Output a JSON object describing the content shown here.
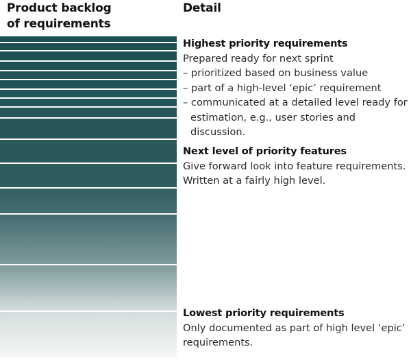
{
  "headings": {
    "backlog_line1": "Product backlog",
    "backlog_line2": "of requirements",
    "detail": "Detail"
  },
  "colors": {
    "band_dark": "#1d4f52",
    "band_mid": "#2b6163",
    "band_light": "#7e9798",
    "band_fade": "#f4f6f6",
    "separator": "#ffffff"
  },
  "backlog_bands": [
    {
      "tier": "highest",
      "shade": 0.0
    },
    {
      "tier": "highest",
      "shade": 0.0
    },
    {
      "tier": "highest",
      "shade": 0.01
    },
    {
      "tier": "highest",
      "shade": 0.01
    },
    {
      "tier": "highest",
      "shade": 0.02
    },
    {
      "tier": "highest",
      "shade": 0.02
    },
    {
      "tier": "highest",
      "shade": 0.03
    },
    {
      "tier": "highest",
      "shade": 0.03
    },
    {
      "tier": "highest",
      "shade": 0.04
    },
    {
      "tier": "next",
      "shade": 0.05
    },
    {
      "tier": "next",
      "shade": 0.06
    },
    {
      "tier": "next",
      "shade": 0.08
    },
    {
      "tier": "next",
      "shade": 0.1
    },
    {
      "tier": "lowest",
      "shade": 0.18
    },
    {
      "tier": "lowest",
      "shade": 0.45
    },
    {
      "tier": "lowest",
      "shade": 0.85
    }
  ],
  "sections": {
    "highest": {
      "title": "Highest priority requirements",
      "intro": "Prepared ready for next sprint",
      "bullets": [
        "– prioritized based on business value",
        "– part of a high-level ‘epic’ requirement",
        "– communicated at a detailed level ready for estimation, e.g., user stories and discussion."
      ]
    },
    "next": {
      "title": "Next level of priority features",
      "lines": [
        "Give forward look into feature requirements.",
        "Written at a fairly high level."
      ]
    },
    "lowest": {
      "title": "Lowest priority requirements",
      "lines": [
        "Only documented as part of high level ‘epic’",
        "requirements."
      ]
    }
  }
}
